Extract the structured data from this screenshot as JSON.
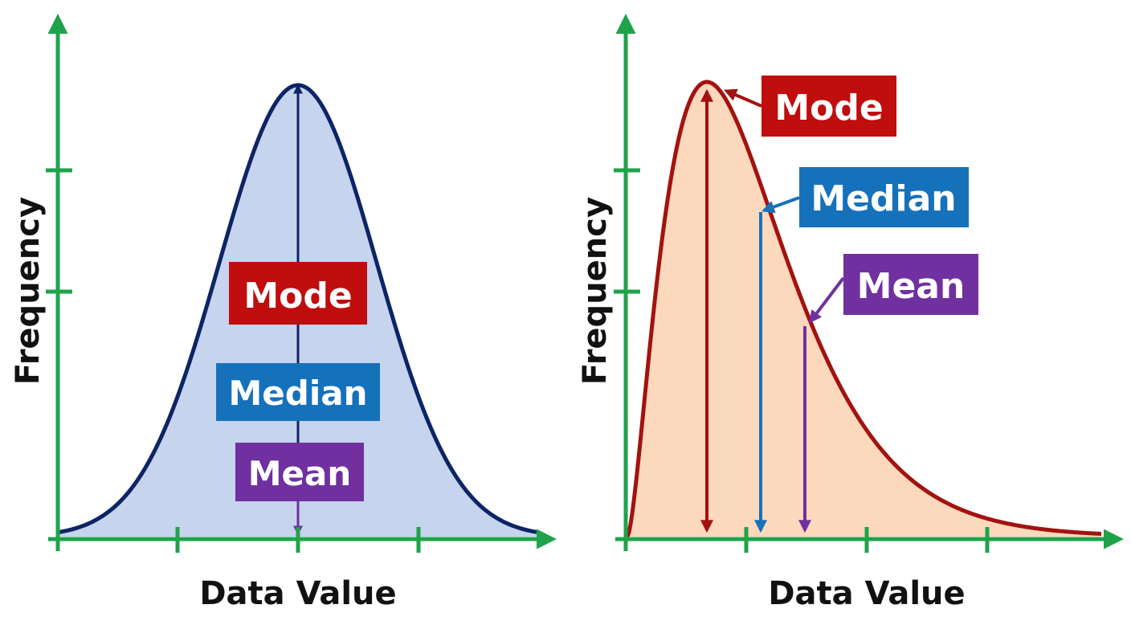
{
  "colors": {
    "axis": "#1fa34a",
    "mode": "#c00d0d",
    "median": "#1671bb",
    "mean": "#7030a0",
    "symmetric_curve": "#0d2466",
    "symmetric_fill": "#c6d4ee",
    "skewed_curve": "#a3120f",
    "skewed_fill": "#fcd8bd"
  },
  "panels": [
    {
      "id": "symmetric",
      "xlabel": "Data Value",
      "ylabel": "Frequency",
      "labels": {
        "mode": "Mode",
        "median": "Median",
        "mean": "Mean"
      }
    },
    {
      "id": "right-skewed",
      "xlabel": "Data Value",
      "ylabel": "Frequency",
      "labels": {
        "mode": "Mode",
        "median": "Median",
        "mean": "Mean"
      }
    }
  ]
}
